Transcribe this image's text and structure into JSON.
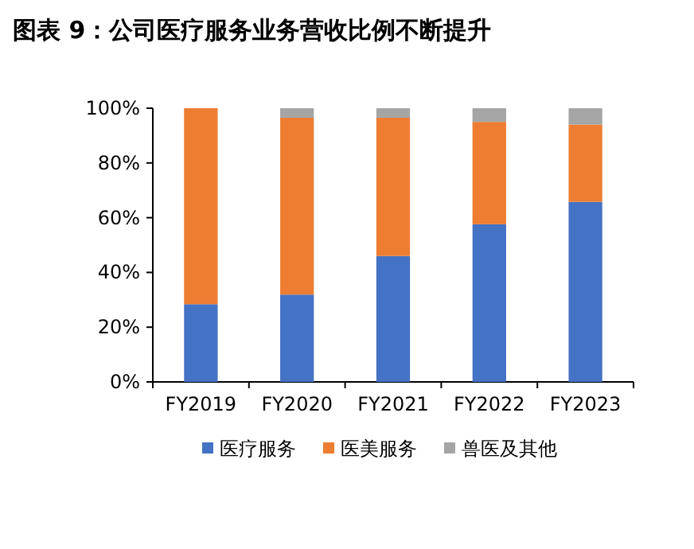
{
  "chart_data": {
    "type": "bar",
    "title": "图表 9：公司医疗服务业务营收比例不断提升",
    "categories": [
      "FY2019",
      "FY2020",
      "FY2021",
      "FY2022",
      "FY2023"
    ],
    "series": [
      {
        "name": "医疗服务",
        "color": "#4472c4",
        "values": [
          28.4,
          31.9,
          46.0,
          57.6,
          65.8
        ]
      },
      {
        "name": "医美服务",
        "color": "#ed7d31",
        "values": [
          71.6,
          64.6,
          50.5,
          37.4,
          28.2
        ]
      },
      {
        "name": "兽医及其他",
        "color": "#a5a5a5",
        "values": [
          0,
          3.5,
          3.5,
          5.0,
          6.0
        ]
      }
    ],
    "stacked": true,
    "ylim": [
      0,
      100
    ],
    "yticks": [
      {
        "value": 0,
        "label": "0%"
      },
      {
        "value": 20,
        "label": "20%"
      },
      {
        "value": 40,
        "label": "40%"
      },
      {
        "value": 60,
        "label": "60%"
      },
      {
        "value": 80,
        "label": "80%"
      },
      {
        "value": 100,
        "label": "100%"
      }
    ],
    "legend": "bottom"
  }
}
